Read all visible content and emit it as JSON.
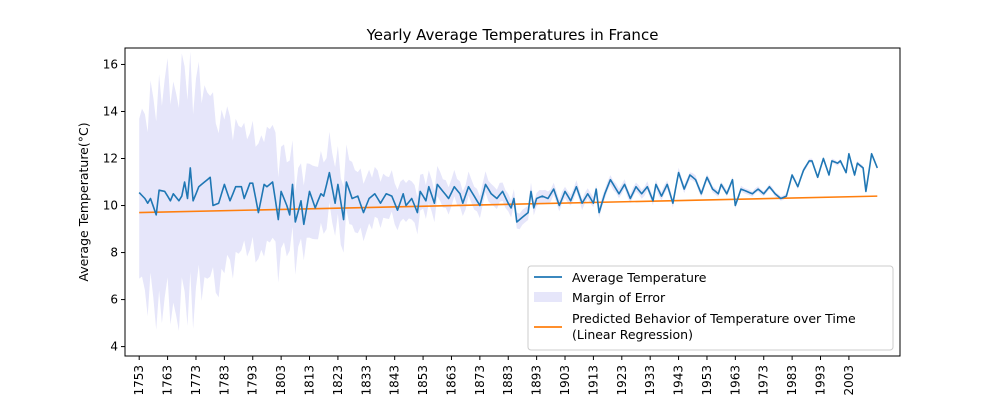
{
  "chart_data": {
    "type": "line",
    "title": "Yearly Average Temperatures in France",
    "xlabel": "",
    "ylabel": "Average Temperature(°C)",
    "xlim": [
      1748,
      2021
    ],
    "ylim": [
      3.6,
      16.7
    ],
    "yticks": [
      4,
      6,
      8,
      10,
      12,
      14,
      16
    ],
    "xticks": [
      1753,
      1763,
      1773,
      1783,
      1793,
      1803,
      1813,
      1823,
      1833,
      1843,
      1853,
      1863,
      1873,
      1883,
      1893,
      1903,
      1913,
      1923,
      1933,
      1943,
      1953,
      1963,
      1973,
      1983,
      1993,
      2003
    ],
    "grid": false,
    "legend_position": "lower-right",
    "colors": {
      "average": "#1f77b4",
      "error_band": "#e6e6fa",
      "regression": "#ff7f0e"
    },
    "series": [
      {
        "name": "Average Temperature",
        "kind": "line",
        "x_start": 1753,
        "x_end": 2013,
        "keypoints": [
          [
            1753,
            10.55
          ],
          [
            1755,
            10.3
          ],
          [
            1756,
            10.1
          ],
          [
            1757,
            10.3
          ],
          [
            1759,
            9.6
          ],
          [
            1760,
            10.65
          ],
          [
            1762,
            10.6
          ],
          [
            1764,
            10.2
          ],
          [
            1765,
            10.5
          ],
          [
            1767,
            10.2
          ],
          [
            1768,
            10.4
          ],
          [
            1769,
            11.0
          ],
          [
            1770,
            10.3
          ],
          [
            1771,
            11.6
          ],
          [
            1772,
            10.2
          ],
          [
            1774,
            10.8
          ],
          [
            1776,
            11.0
          ],
          [
            1778,
            11.2
          ],
          [
            1779,
            10.0
          ],
          [
            1781,
            10.1
          ],
          [
            1783,
            10.9
          ],
          [
            1785,
            10.2
          ],
          [
            1787,
            10.8
          ],
          [
            1789,
            10.8
          ],
          [
            1790,
            10.3
          ],
          [
            1792,
            10.95
          ],
          [
            1793,
            10.95
          ],
          [
            1795,
            9.7
          ],
          [
            1797,
            10.9
          ],
          [
            1798,
            10.8
          ],
          [
            1800,
            11.0
          ],
          [
            1802,
            9.4
          ],
          [
            1803,
            10.6
          ],
          [
            1805,
            10.0
          ],
          [
            1806,
            9.6
          ],
          [
            1807,
            10.9
          ],
          [
            1808,
            9.3
          ],
          [
            1810,
            10.2
          ],
          [
            1811,
            9.2
          ],
          [
            1813,
            10.6
          ],
          [
            1815,
            9.9
          ],
          [
            1817,
            10.5
          ],
          [
            1818,
            10.4
          ],
          [
            1820,
            11.4
          ],
          [
            1822,
            10.1
          ],
          [
            1823,
            10.9
          ],
          [
            1825,
            9.4
          ],
          [
            1826,
            11.0
          ],
          [
            1828,
            10.3
          ],
          [
            1830,
            10.4
          ],
          [
            1832,
            9.7
          ],
          [
            1834,
            10.3
          ],
          [
            1836,
            10.5
          ],
          [
            1838,
            10.1
          ],
          [
            1840,
            10.5
          ],
          [
            1842,
            10.4
          ],
          [
            1844,
            9.8
          ],
          [
            1846,
            10.5
          ],
          [
            1847,
            10.0
          ],
          [
            1849,
            10.3
          ],
          [
            1851,
            9.7
          ],
          [
            1852,
            10.6
          ],
          [
            1854,
            10.2
          ],
          [
            1855,
            10.8
          ],
          [
            1857,
            10.1
          ],
          [
            1858,
            10.9
          ],
          [
            1860,
            10.6
          ],
          [
            1862,
            10.3
          ],
          [
            1864,
            10.8
          ],
          [
            1866,
            10.5
          ],
          [
            1867,
            10.1
          ],
          [
            1869,
            10.8
          ],
          [
            1871,
            10.4
          ],
          [
            1873,
            10.0
          ],
          [
            1875,
            10.9
          ],
          [
            1877,
            10.5
          ],
          [
            1879,
            10.3
          ],
          [
            1881,
            10.6
          ],
          [
            1883,
            10.1
          ],
          [
            1884,
            9.9
          ],
          [
            1885,
            10.3
          ],
          [
            1886,
            9.3
          ],
          [
            1888,
            9.5
          ],
          [
            1890,
            9.7
          ],
          [
            1891,
            10.6
          ],
          [
            1892,
            9.9
          ],
          [
            1893,
            10.3
          ],
          [
            1895,
            10.4
          ],
          [
            1897,
            10.3
          ],
          [
            1899,
            10.7
          ],
          [
            1901,
            10.0
          ],
          [
            1903,
            10.6
          ],
          [
            1905,
            10.2
          ],
          [
            1907,
            10.8
          ],
          [
            1909,
            10.1
          ],
          [
            1911,
            10.5
          ],
          [
            1913,
            10.1
          ],
          [
            1914,
            10.7
          ],
          [
            1915,
            9.7
          ],
          [
            1917,
            10.5
          ],
          [
            1919,
            11.1
          ],
          [
            1920,
            10.9
          ],
          [
            1922,
            10.5
          ],
          [
            1924,
            10.9
          ],
          [
            1926,
            10.3
          ],
          [
            1928,
            10.8
          ],
          [
            1930,
            10.5
          ],
          [
            1932,
            10.8
          ],
          [
            1934,
            10.2
          ],
          [
            1935,
            10.9
          ],
          [
            1937,
            10.4
          ],
          [
            1939,
            10.9
          ],
          [
            1941,
            10.1
          ],
          [
            1943,
            11.4
          ],
          [
            1945,
            10.7
          ],
          [
            1947,
            11.3
          ],
          [
            1949,
            11.1
          ],
          [
            1951,
            10.5
          ],
          [
            1953,
            11.2
          ],
          [
            1955,
            10.7
          ],
          [
            1957,
            10.5
          ],
          [
            1958,
            10.9
          ],
          [
            1960,
            10.5
          ],
          [
            1962,
            11.1
          ],
          [
            1963,
            10.0
          ],
          [
            1965,
            10.7
          ],
          [
            1967,
            10.6
          ],
          [
            1969,
            10.5
          ],
          [
            1971,
            10.7
          ],
          [
            1973,
            10.5
          ],
          [
            1975,
            10.8
          ],
          [
            1977,
            10.5
          ],
          [
            1979,
            10.3
          ],
          [
            1981,
            10.4
          ],
          [
            1983,
            11.3
          ],
          [
            1985,
            10.8
          ],
          [
            1987,
            11.5
          ],
          [
            1989,
            11.9
          ],
          [
            1990,
            11.9
          ],
          [
            1992,
            11.2
          ],
          [
            1994,
            12.0
          ],
          [
            1996,
            11.3
          ],
          [
            1997,
            11.9
          ],
          [
            1999,
            11.8
          ],
          [
            2000,
            11.9
          ],
          [
            2002,
            11.4
          ],
          [
            2003,
            12.2
          ],
          [
            2005,
            11.3
          ],
          [
            2006,
            11.8
          ],
          [
            2008,
            11.6
          ],
          [
            2009,
            10.6
          ],
          [
            2011,
            12.2
          ],
          [
            2013,
            11.6
          ]
        ]
      },
      {
        "name": "Margin of Error",
        "kind": "band",
        "x_start": 1753,
        "x_end": 2013,
        "halfwidth_keypoints": [
          [
            1753,
            3.4
          ],
          [
            1760,
            4.6
          ],
          [
            1770,
            4.8
          ],
          [
            1780,
            3.6
          ],
          [
            1790,
            2.5
          ],
          [
            1800,
            2.4
          ],
          [
            1810,
            1.6
          ],
          [
            1820,
            1.5
          ],
          [
            1830,
            1.3
          ],
          [
            1840,
            0.9
          ],
          [
            1850,
            0.8
          ],
          [
            1860,
            0.6
          ],
          [
            1870,
            0.5
          ],
          [
            1880,
            0.4
          ],
          [
            1890,
            0.3
          ],
          [
            1900,
            0.25
          ],
          [
            1920,
            0.2
          ],
          [
            1940,
            0.18
          ],
          [
            1960,
            0.12
          ],
          [
            1980,
            0.1
          ],
          [
            2013,
            0.08
          ]
        ]
      },
      {
        "name": "Predicted Behavior of Temperature over Time\n(Linear Regression)",
        "kind": "line",
        "x": [
          1753,
          2013
        ],
        "values": [
          9.7,
          10.4
        ]
      }
    ]
  }
}
